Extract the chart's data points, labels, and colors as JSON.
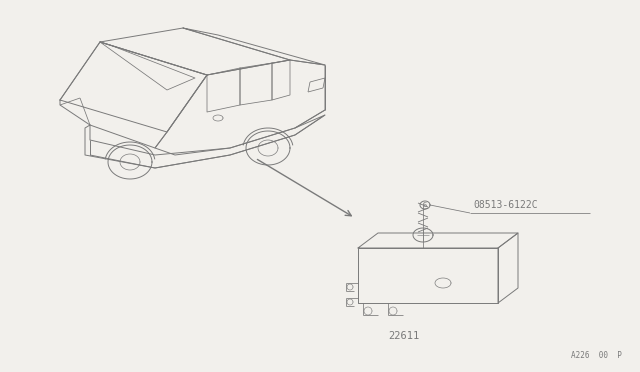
{
  "bg_color": "#f2f0ec",
  "line_color": "#7a7a7a",
  "text_color": "#7a7a7a",
  "footer_text": "A226  00  P",
  "part_label_ecm": "22611",
  "part_label_screw": "08513-6122C",
  "lw": 0.7
}
